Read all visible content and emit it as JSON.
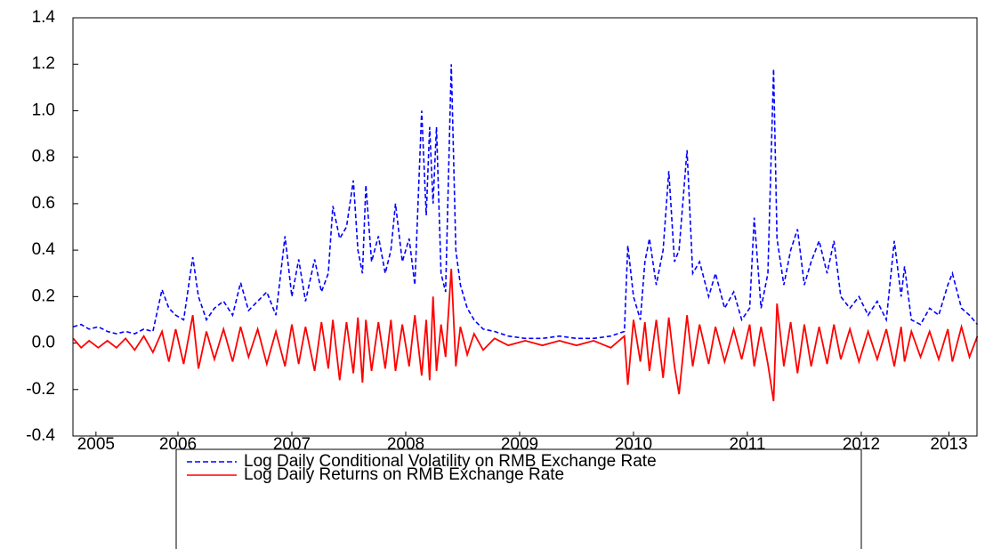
{
  "chart_data": {
    "type": "line",
    "x": [
      2005.58,
      2005.65,
      2005.72,
      2005.8,
      2005.88,
      2005.96,
      2006.04,
      2006.12,
      2006.2,
      2006.28,
      2006.36,
      2006.42,
      2006.48,
      2006.55,
      2006.63,
      2006.68,
      2006.75,
      2006.82,
      2006.9,
      2006.98,
      2007.05,
      2007.12,
      2007.2,
      2007.28,
      2007.36,
      2007.44,
      2007.5,
      2007.56,
      2007.62,
      2007.7,
      2007.76,
      2007.82,
      2007.86,
      2007.92,
      2007.98,
      2008.04,
      2008.08,
      2008.12,
      2008.15,
      2008.2,
      2008.26,
      2008.32,
      2008.37,
      2008.41,
      2008.47,
      2008.53,
      2008.58,
      2008.64,
      2008.68,
      2008.71,
      2008.74,
      2008.77,
      2008.81,
      2008.85,
      2008.9,
      2008.94,
      2008.98,
      2009.04,
      2009.1,
      2009.18,
      2009.28,
      2009.4,
      2009.55,
      2009.7,
      2009.85,
      2010.0,
      2010.15,
      2010.3,
      2010.42,
      2010.45,
      2010.5,
      2010.56,
      2010.6,
      2010.64,
      2010.7,
      2010.76,
      2010.81,
      2010.86,
      2010.9,
      2010.97,
      2011.02,
      2011.08,
      2011.16,
      2011.22,
      2011.3,
      2011.38,
      2011.45,
      2011.52,
      2011.56,
      2011.62,
      2011.68,
      2011.73,
      2011.76,
      2011.82,
      2011.88,
      2011.94,
      2012.0,
      2012.06,
      2012.13,
      2012.2,
      2012.26,
      2012.32,
      2012.4,
      2012.48,
      2012.56,
      2012.64,
      2012.72,
      2012.79,
      2012.85,
      2012.88,
      2012.94,
      2013.02,
      2013.1,
      2013.18,
      2013.26,
      2013.3,
      2013.38,
      2013.45,
      2013.52
    ],
    "series": [
      {
        "name": "Log Daily Conditional Volatility on RMB Exchange Rate",
        "color": "#0000ff",
        "line_style": "dashed",
        "values": [
          0.07,
          0.08,
          0.06,
          0.07,
          0.05,
          0.04,
          0.05,
          0.04,
          0.06,
          0.05,
          0.23,
          0.15,
          0.12,
          0.1,
          0.37,
          0.2,
          0.1,
          0.15,
          0.18,
          0.12,
          0.26,
          0.14,
          0.18,
          0.22,
          0.12,
          0.46,
          0.2,
          0.36,
          0.18,
          0.36,
          0.22,
          0.3,
          0.59,
          0.45,
          0.5,
          0.7,
          0.4,
          0.3,
          0.68,
          0.35,
          0.46,
          0.3,
          0.4,
          0.6,
          0.35,
          0.45,
          0.25,
          1.0,
          0.55,
          0.93,
          0.6,
          0.93,
          0.3,
          0.22,
          1.2,
          0.4,
          0.25,
          0.15,
          0.1,
          0.06,
          0.05,
          0.03,
          0.02,
          0.02,
          0.03,
          0.02,
          0.02,
          0.03,
          0.05,
          0.42,
          0.2,
          0.1,
          0.35,
          0.45,
          0.25,
          0.4,
          0.74,
          0.35,
          0.4,
          0.83,
          0.3,
          0.35,
          0.2,
          0.3,
          0.15,
          0.22,
          0.1,
          0.15,
          0.54,
          0.15,
          0.3,
          1.18,
          0.45,
          0.25,
          0.4,
          0.49,
          0.25,
          0.35,
          0.44,
          0.3,
          0.44,
          0.2,
          0.15,
          0.2,
          0.12,
          0.18,
          0.1,
          0.44,
          0.2,
          0.33,
          0.1,
          0.08,
          0.15,
          0.12,
          0.25,
          0.3,
          0.15,
          0.12,
          0.08
        ]
      },
      {
        "name": "Log Daily Returns on RMB Exchange Rate",
        "color": "#ff0000",
        "line_style": "solid",
        "values": [
          0.02,
          -0.02,
          0.01,
          -0.02,
          0.01,
          -0.02,
          0.02,
          -0.03,
          0.03,
          -0.04,
          0.05,
          -0.08,
          0.06,
          -0.09,
          0.12,
          -0.11,
          0.05,
          -0.07,
          0.06,
          -0.08,
          0.07,
          -0.06,
          0.06,
          -0.09,
          0.05,
          -0.1,
          0.08,
          -0.09,
          0.07,
          -0.12,
          0.09,
          -0.11,
          0.1,
          -0.16,
          0.09,
          -0.13,
          0.11,
          -0.17,
          0.1,
          -0.12,
          0.09,
          -0.11,
          0.1,
          -0.12,
          0.08,
          -0.1,
          0.12,
          -0.14,
          0.1,
          -0.16,
          0.2,
          -0.12,
          0.08,
          -0.06,
          0.32,
          -0.1,
          0.07,
          -0.05,
          0.04,
          -0.03,
          0.02,
          -0.01,
          0.01,
          -0.01,
          0.01,
          -0.01,
          0.01,
          -0.02,
          0.03,
          -0.18,
          0.1,
          -0.08,
          0.09,
          -0.12,
          0.1,
          -0.15,
          0.11,
          -0.1,
          -0.22,
          0.12,
          -0.1,
          0.08,
          -0.09,
          0.07,
          -0.08,
          0.06,
          -0.07,
          0.08,
          -0.1,
          0.07,
          -0.09,
          -0.25,
          0.17,
          -0.1,
          0.09,
          -0.13,
          0.08,
          -0.1,
          0.07,
          -0.09,
          0.08,
          -0.07,
          0.06,
          -0.08,
          0.05,
          -0.07,
          0.06,
          -0.1,
          0.07,
          -0.08,
          0.05,
          -0.06,
          0.05,
          -0.07,
          0.06,
          -0.08,
          0.07,
          -0.06,
          0.03
        ]
      }
    ],
    "xlim": [
      2005.578,
      2013.516
    ],
    "xticks": [
      {
        "value": 2005.78,
        "label": "2005"
      },
      {
        "value": 2006.5,
        "label": "2006"
      },
      {
        "value": 2007.5,
        "label": "2007"
      },
      {
        "value": 2008.5,
        "label": "2008"
      },
      {
        "value": 2009.5,
        "label": "2009"
      },
      {
        "value": 2010.5,
        "label": "2010"
      },
      {
        "value": 2011.5,
        "label": "2011"
      },
      {
        "value": 2012.5,
        "label": "2012"
      },
      {
        "value": 2013.27,
        "label": "2013"
      }
    ],
    "ylim": [
      -0.4,
      1.4
    ],
    "yticks": [
      1.4,
      1.2,
      {
        "value": 1.0,
        "label": "1.0"
      },
      0.8,
      0.6,
      0.4,
      0.2,
      {
        "value": 0.0,
        "label": "0.0"
      },
      -0.2,
      -0.4
    ],
    "grid": false,
    "legend": "bottom"
  }
}
